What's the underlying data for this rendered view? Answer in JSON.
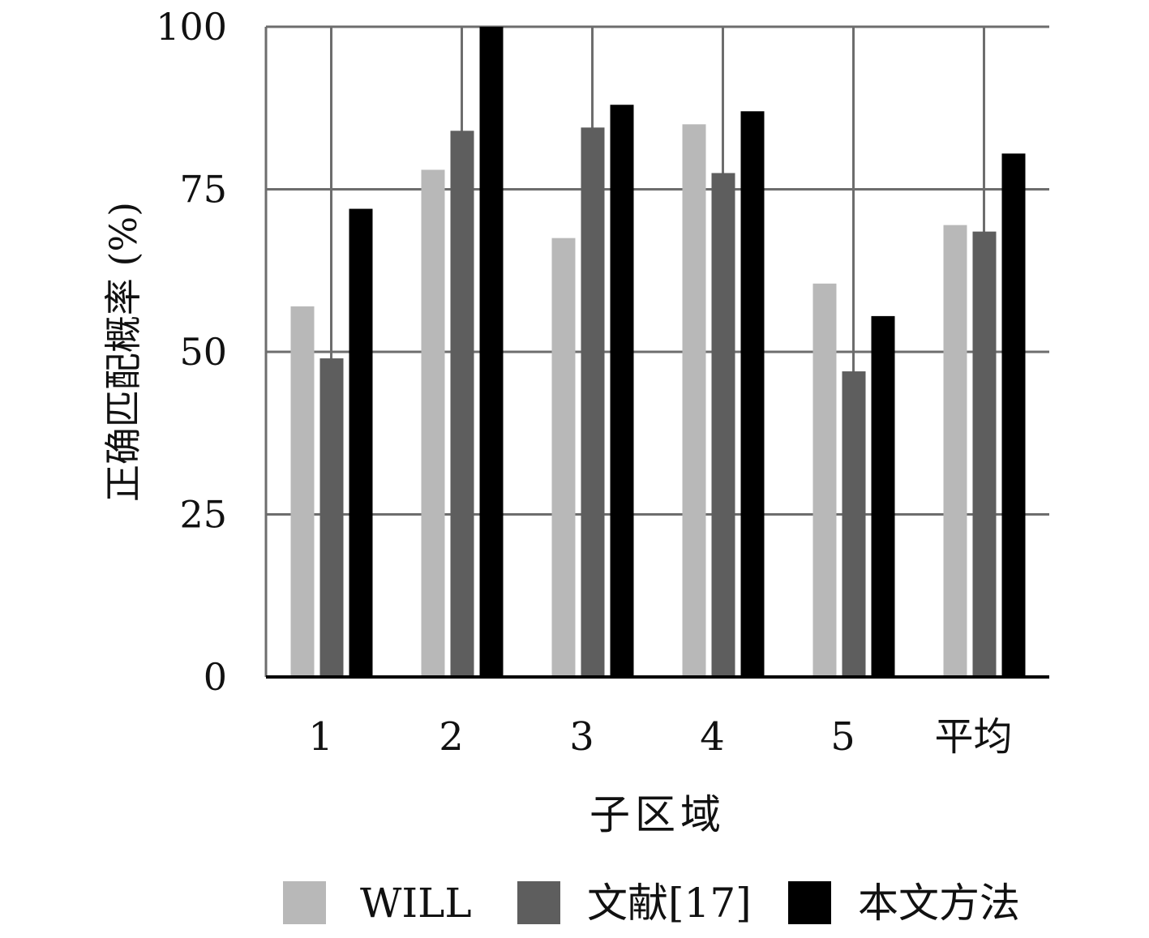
{
  "chart_data": {
    "type": "bar",
    "categories": [
      "1",
      "2",
      "3",
      "4",
      "5",
      "平均"
    ],
    "series": [
      {
        "name": "WILL",
        "color": "#b8b8b8",
        "values": [
          57,
          78,
          67.5,
          85,
          60.5,
          69.5
        ]
      },
      {
        "name": "文献[17]",
        "color": "#5e5e5e",
        "values": [
          49,
          84,
          84.5,
          77.5,
          47,
          68.5
        ]
      },
      {
        "name": "本文方法",
        "color": "#000000",
        "values": [
          72,
          100,
          88,
          87,
          55.5,
          80.5
        ]
      }
    ],
    "xlabel": "子区域",
    "ylabel": "正确匹配概率 (%)",
    "ylim": [
      0,
      100
    ],
    "yticks": [
      "0",
      "25",
      "50",
      "75",
      "100"
    ],
    "grid": true,
    "legend_position": "bottom"
  }
}
